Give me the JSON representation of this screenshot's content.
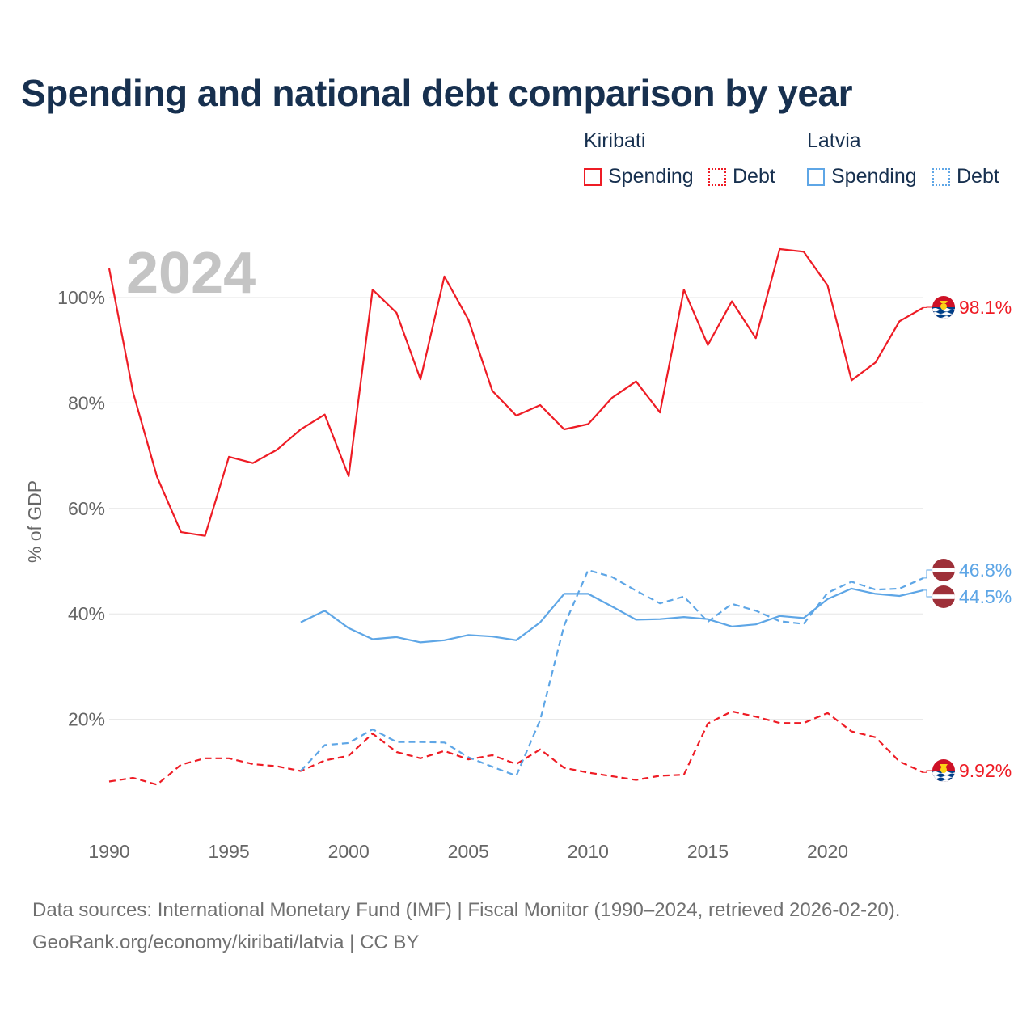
{
  "title": "Spending and national debt comparison by year",
  "legend": {
    "groups": [
      {
        "name": "Kiribati",
        "items": [
          {
            "label": "Spending",
            "color": "#ee1c25",
            "style": "solid"
          },
          {
            "label": "Debt",
            "color": "#ee1c25",
            "style": "dotted"
          }
        ]
      },
      {
        "name": "Latvia",
        "items": [
          {
            "label": "Spending",
            "color": "#5ea6e6",
            "style": "solid"
          },
          {
            "label": "Debt",
            "color": "#5ea6e6",
            "style": "dotted"
          }
        ]
      }
    ]
  },
  "year_label": "2024",
  "source": {
    "line1": "Data sources: International Monetary Fund (IMF) | Fiscal Monitor (1990–2024, retrieved 2026-02-20).",
    "line2": "GeoRank.org/economy/kiribati/latvia | CC BY"
  },
  "chart_data": {
    "type": "line",
    "title": "Spending and national debt comparison by year",
    "xlabel": "",
    "ylabel": "% of GDP",
    "xlim": [
      1990,
      2024
    ],
    "ylim": [
      0,
      112
    ],
    "xticks": [
      1990,
      1995,
      2000,
      2005,
      2010,
      2015,
      2020
    ],
    "yticks": [
      20,
      40,
      60,
      80,
      100
    ],
    "ytick_labels": [
      "20%",
      "40%",
      "60%",
      "80%",
      "100%"
    ],
    "grid": true,
    "series": [
      {
        "name": "Kiribati Spending",
        "country": "Kiribati",
        "metric": "Spending",
        "color": "#ee1c25",
        "dash": "solid",
        "x": [
          1990,
          1991,
          1992,
          1993,
          1994,
          1995,
          1996,
          1997,
          1998,
          1999,
          2000,
          2001,
          2002,
          2003,
          2004,
          2005,
          2006,
          2007,
          2008,
          2009,
          2010,
          2011,
          2012,
          2013,
          2014,
          2015,
          2016,
          2017,
          2018,
          2019,
          2020,
          2021,
          2022,
          2023,
          2024
        ],
        "values": [
          105.5,
          82,
          66,
          55.5,
          54.8,
          69.8,
          68.6,
          71.1,
          75,
          77.8,
          66.1,
          101.5,
          97.1,
          84.5,
          104,
          95.8,
          82.3,
          77.6,
          79.6,
          75,
          76,
          81,
          84.1,
          78.2,
          101.5,
          91,
          99.3,
          92.3,
          109.2,
          108.7,
          102.3,
          84.3,
          87.7,
          95.5,
          98.1
        ],
        "end_label": "98.1%"
      },
      {
        "name": "Kiribati Debt",
        "country": "Kiribati",
        "metric": "Debt",
        "color": "#ee1c25",
        "dash": "dashed",
        "x": [
          1990,
          1991,
          1992,
          1993,
          1994,
          1995,
          1996,
          1997,
          1998,
          1999,
          2000,
          2001,
          2002,
          2003,
          2004,
          2005,
          2006,
          2007,
          2008,
          2009,
          2010,
          2011,
          2012,
          2013,
          2014,
          2015,
          2016,
          2017,
          2018,
          2019,
          2020,
          2021,
          2022,
          2023,
          2024
        ],
        "values": [
          8.2,
          8.9,
          7.6,
          11.4,
          12.6,
          12.6,
          11.5,
          11.1,
          10.2,
          12.2,
          13.1,
          17.3,
          13.8,
          12.6,
          14,
          12.4,
          13.2,
          11.5,
          14.3,
          10.8,
          9.9,
          9.2,
          8.5,
          9.3,
          9.5,
          19.2,
          21.5,
          20.5,
          19.3,
          19.3,
          21.2,
          17.7,
          16.6,
          12,
          9.92
        ],
        "end_label": "9.92%"
      },
      {
        "name": "Latvia Spending",
        "country": "Latvia",
        "metric": "Spending",
        "color": "#5ea6e6",
        "dash": "solid",
        "x": [
          1998,
          1999,
          2000,
          2001,
          2002,
          2003,
          2004,
          2005,
          2006,
          2007,
          2008,
          2009,
          2010,
          2011,
          2012,
          2013,
          2014,
          2015,
          2016,
          2017,
          2018,
          2019,
          2020,
          2021,
          2022,
          2023,
          2024
        ],
        "values": [
          38.4,
          40.6,
          37.3,
          35.2,
          35.6,
          34.6,
          35,
          36,
          35.7,
          35,
          38.4,
          43.8,
          43.8,
          41.4,
          38.9,
          39,
          39.4,
          39,
          37.6,
          38,
          39.6,
          39.2,
          42.8,
          44.8,
          43.8,
          43.4,
          44.5
        ],
        "end_label": "44.5%"
      },
      {
        "name": "Latvia Debt",
        "country": "Latvia",
        "metric": "Debt",
        "color": "#5ea6e6",
        "dash": "dashed",
        "x": [
          1998,
          1999,
          2000,
          2001,
          2002,
          2003,
          2004,
          2005,
          2006,
          2007,
          2008,
          2009,
          2010,
          2011,
          2012,
          2013,
          2014,
          2015,
          2016,
          2017,
          2018,
          2019,
          2020,
          2021,
          2022,
          2023,
          2024
        ],
        "values": [
          10.2,
          15.1,
          15.5,
          18.1,
          15.7,
          15.7,
          15.6,
          12.8,
          11,
          9.3,
          19.9,
          37.8,
          48.3,
          47,
          44.4,
          42,
          43.3,
          38.5,
          41.9,
          40.6,
          38.6,
          38.1,
          44,
          46.1,
          44.6,
          44.8,
          46.8
        ],
        "end_label": "46.8%"
      }
    ]
  }
}
